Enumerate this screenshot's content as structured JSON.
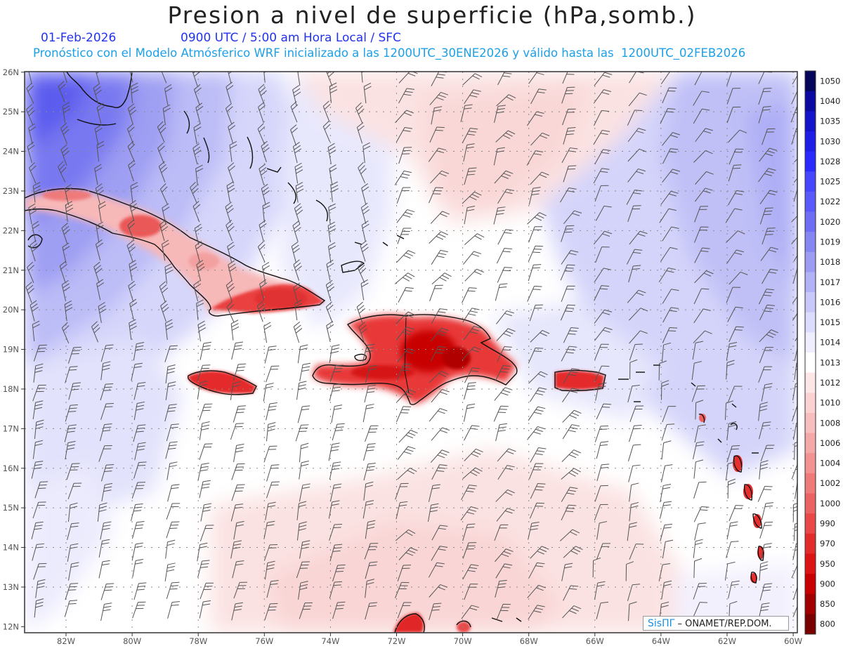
{
  "title": "Presion a nivel de superficie (hPa,somb.)",
  "date": "01-Feb-2026",
  "time_info": "0900 UTC / 5:00 am Hora Local / SFC",
  "forecast_info": "Pronóstico con el Modelo Atmósferico WRF inicializado a las 1200UTC_30ENE2026 y válido hasta las  1200UTC_02FEB2026",
  "credit": {
    "brand": "SisПΓ",
    "org": " – ONAMET/REP.DOM."
  },
  "lat_labels": [
    "26N",
    "25N",
    "24N",
    "23N",
    "22N",
    "21N",
    "20N",
    "19N",
    "18N",
    "17N",
    "16N",
    "15N",
    "14N",
    "13N",
    "12N"
  ],
  "lon_labels": [
    "82W",
    "80W",
    "78W",
    "76W",
    "74W",
    "72W",
    "70W",
    "68W",
    "66W",
    "64W",
    "62W",
    "60W"
  ],
  "colorbar": {
    "levels": [
      "1050",
      "1040",
      "1035",
      "1030",
      "1028",
      "1025",
      "1022",
      "1020",
      "1019",
      "1018",
      "1017",
      "1016",
      "1015",
      "1014",
      "1013",
      "1012",
      "1010",
      "1008",
      "1006",
      "1004",
      "1002",
      "1000",
      "990",
      "970",
      "950",
      "900",
      "850",
      "800"
    ],
    "colors": [
      "#05055a",
      "#0a0aa0",
      "#1414c8",
      "#1e1ee6",
      "#2a2aff",
      "#4646ff",
      "#5a5afa",
      "#6e6ef5",
      "#8686f2",
      "#9c9cf4",
      "#b2b2f7",
      "#c8c8fa",
      "#dcdcfc",
      "#eeeefe",
      "#ffffff",
      "#fde6e6",
      "#fbd2d2",
      "#f8bebe",
      "#f5a8a8",
      "#f29292",
      "#ee7a7a",
      "#ea6262",
      "#e84848",
      "#e22c2c",
      "#dc1414",
      "#c80000",
      "#a00000",
      "#7a0000"
    ]
  }
}
